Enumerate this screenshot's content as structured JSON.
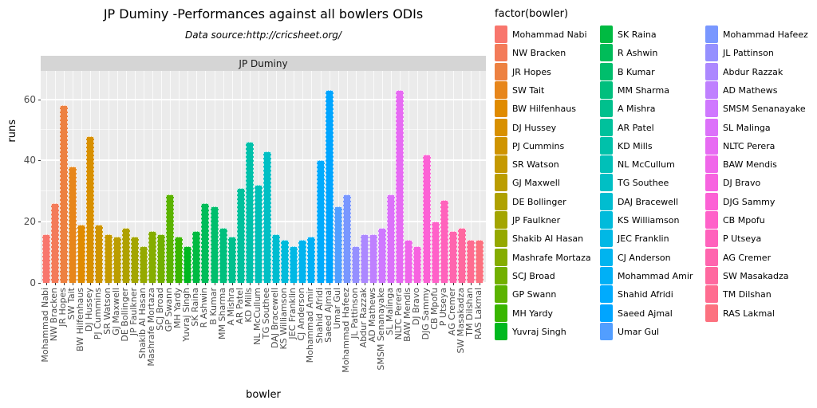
{
  "title": "JP Duminy -Performances against all bowlers ODIs",
  "subtitle": "Data source:http://cricsheet.org/",
  "facet_label": "JP Duminy",
  "legend_title": "factor(bowler)",
  "colors": {
    "panel_bg": "#EBEBEB",
    "strip_bg": "#D5D5D5",
    "grid": "#FFFFFF"
  },
  "chart_data": {
    "type": "bar",
    "title": "JP Duminy -Performances against all bowlers ODIs",
    "subtitle": "Data source:http://cricsheet.org/",
    "xlabel": "bowler",
    "ylabel": "runs",
    "yticks": [
      0,
      20,
      40,
      60
    ],
    "yticks_minor": [
      10,
      30,
      50
    ],
    "ylim": [
      0,
      69.3
    ],
    "grid": true,
    "legend_position": "right",
    "color_scheme": "ggplot2-hue-50",
    "categories": [
      "Mohammad Nabi",
      "NW Bracken",
      "JR Hopes",
      "SW Tait",
      "BW Hilfenhaus",
      "DJ Hussey",
      "PJ Cummins",
      "SR Watson",
      "GJ Maxwell",
      "DE Bollinger",
      "JP Faulkner",
      "Shakib Al Hasan",
      "Mashrafe Mortaza",
      "SCJ Broad",
      "GP Swann",
      "MH Yardy",
      "Yuvraj Singh",
      "SK Raina",
      "R Ashwin",
      "B Kumar",
      "MM Sharma",
      "A Mishra",
      "AR Patel",
      "KD Mills",
      "NL McCullum",
      "TG Southee",
      "DAJ Bracewell",
      "KS Williamson",
      "JEC Franklin",
      "CJ Anderson",
      "Mohammad Amir",
      "Shahid Afridi",
      "Saeed Ajmal",
      "Umar Gul",
      "Mohammad Hafeez",
      "JL Pattinson",
      "Abdur Razzak",
      "AD Mathews",
      "SMSM Senanayake",
      "SL Malinga",
      "NLTC Perera",
      "BAW Mendis",
      "DJ Bravo",
      "DJG Sammy",
      "CB Mpofu",
      "P Utseya",
      "AG Cremer",
      "SW Masakadza",
      "TM Dilshan",
      "RAS Lakmal"
    ],
    "values": [
      16,
      26,
      58,
      38,
      19,
      48,
      19,
      16,
      15,
      18,
      15,
      12,
      17,
      16,
      29,
      15,
      12,
      17,
      26,
      25,
      18,
      15,
      31,
      46,
      32,
      43,
      16,
      14,
      12,
      14,
      15,
      40,
      63,
      25,
      29,
      12,
      16,
      16,
      18,
      29,
      63,
      14,
      12,
      42,
      20,
      27,
      17,
      18,
      14,
      14
    ],
    "legend_columns": [
      17,
      17,
      16
    ]
  }
}
